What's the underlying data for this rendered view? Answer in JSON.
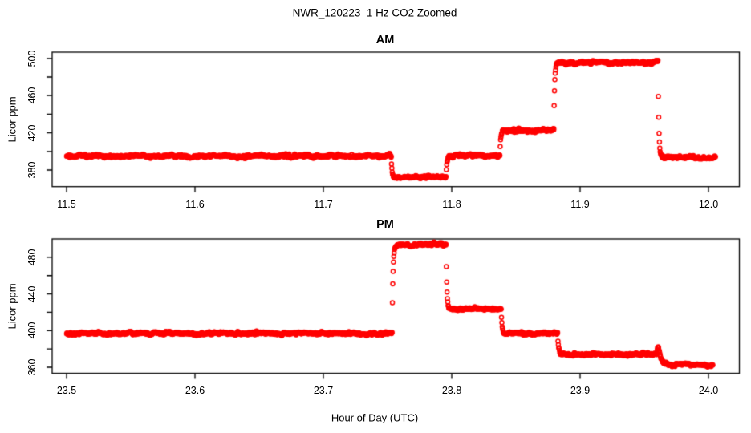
{
  "title": "NWR_120223  1 Hz CO2 Zoomed",
  "xlabel": "Hour of Day (UTC)",
  "colors": {
    "points": "#ff0000",
    "axis": "#000000",
    "background": "#ffffff"
  },
  "chart_data": [
    {
      "type": "scatter",
      "panel": "top",
      "title": "AM",
      "ylabel": "Licor ppm",
      "marker": "open-circle",
      "marker_color": "#ff0000",
      "sample_interval_s": 1,
      "x_ticks": [
        "11.5",
        "11.6",
        "11.7",
        "11.8",
        "11.9",
        "12.0"
      ],
      "x_tick_values": [
        11.5,
        11.6,
        11.7,
        11.8,
        11.9,
        12.0
      ],
      "y_ticks": [
        "380",
        "420",
        "460",
        "500"
      ],
      "y_tick_values": [
        380,
        420,
        460,
        500
      ],
      "y_minor_tick_values": [
        400,
        440,
        480
      ],
      "xlim": [
        11.489,
        12.024
      ],
      "ylim": [
        362,
        507
      ],
      "noise_sd_ppm": 0.8,
      "default_step_tau_s": 2.2,
      "segments": [
        {
          "t_start": 11.5,
          "t_end": 11.7528,
          "co2_ppm": 395.0
        },
        {
          "t_start": 11.7528,
          "t_end": 11.7955,
          "co2_ppm": 372.5
        },
        {
          "t_start": 11.7955,
          "t_end": 11.8375,
          "co2_ppm": 395.5
        },
        {
          "t_start": 11.8375,
          "t_end": 11.8795,
          "co2_ppm": 422.5
        },
        {
          "t_start": 11.8795,
          "t_end": 11.9585,
          "co2_ppm": 495.5
        },
        {
          "t_start": 11.9585,
          "t_end": 11.9607,
          "co2_ppm": 497.5,
          "tau_s": 1.0
        },
        {
          "t_start": 11.9607,
          "t_end": 12.0055,
          "co2_ppm": 393.5
        }
      ]
    },
    {
      "type": "scatter",
      "panel": "bottom",
      "title": "PM",
      "ylabel": "Licor ppm",
      "marker": "open-circle",
      "marker_color": "#ff0000",
      "sample_interval_s": 1,
      "x_ticks": [
        "23.5",
        "23.6",
        "23.7",
        "23.8",
        "23.9",
        "24.0"
      ],
      "x_tick_values": [
        23.5,
        23.6,
        23.7,
        23.8,
        23.9,
        24.0
      ],
      "y_ticks": [
        "360",
        "400",
        "440",
        "480"
      ],
      "y_tick_values": [
        360,
        400,
        440,
        480
      ],
      "y_minor_tick_values": [
        380,
        420,
        460
      ],
      "xlim": [
        23.489,
        24.024
      ],
      "ylim": [
        353,
        500
      ],
      "noise_sd_ppm": 0.8,
      "default_step_tau_s": 2.2,
      "segments": [
        {
          "t_start": 23.5,
          "t_end": 23.7535,
          "co2_ppm": 397.0
        },
        {
          "t_start": 23.7535,
          "t_end": 23.7955,
          "co2_ppm": 494.0,
          "tau_s": 2.5
        },
        {
          "t_start": 23.7955,
          "t_end": 23.8385,
          "co2_ppm": 424.0
        },
        {
          "t_start": 23.8385,
          "t_end": 23.8825,
          "co2_ppm": 397.0
        },
        {
          "t_start": 23.8825,
          "t_end": 23.9598,
          "co2_ppm": 374.0
        },
        {
          "t_start": 23.9598,
          "t_end": 23.9609,
          "co2_ppm": 381.5,
          "tau_s": 1.0
        },
        {
          "t_start": 23.9609,
          "t_end": 24.0035,
          "co2_ppm": 362.5,
          "tau_s": 9.0
        }
      ]
    }
  ]
}
